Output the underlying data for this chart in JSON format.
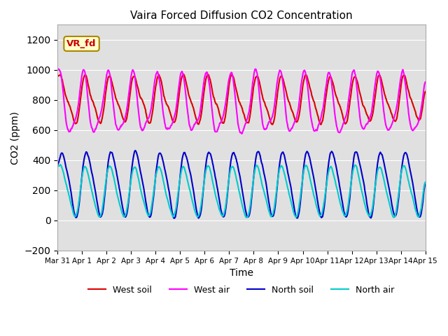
{
  "title": "Vaira Forced Diffusion CO2 Concentration",
  "xlabel": "Time",
  "ylabel": "CO2 (ppm)",
  "ylim": [
    -200,
    1300
  ],
  "yticks": [
    -200,
    0,
    200,
    400,
    600,
    800,
    1000,
    1200
  ],
  "xtick_labels": [
    "Mar 31",
    "Apr 1",
    "Apr 2",
    "Apr 3",
    "Apr 4",
    "Apr 5",
    "Apr 6",
    "Apr 7",
    "Apr 8",
    "Apr 9",
    "Apr 10",
    "Apr 11",
    "Apr 12",
    "Apr 13",
    "Apr 14",
    "Apr 15"
  ],
  "xtick_positions": [
    0,
    1,
    2,
    3,
    4,
    5,
    6,
    7,
    8,
    9,
    10,
    11,
    12,
    13,
    14,
    15
  ],
  "legend_labels": [
    "West soil",
    "West air",
    "North soil",
    "North air"
  ],
  "colors": {
    "west_soil": "#dd0000",
    "west_air": "#ff00ff",
    "north_soil": "#0000cc",
    "north_air": "#00cccc"
  },
  "annotation_text": "VR_fd",
  "annotation_color": "#cc0000",
  "annotation_bg": "#ffffcc",
  "annotation_border": "#aa8800",
  "bg_color": "#e0e0e0",
  "line_width": 1.5,
  "n_points": 900,
  "days": 15,
  "xlim": [
    0,
    15
  ]
}
